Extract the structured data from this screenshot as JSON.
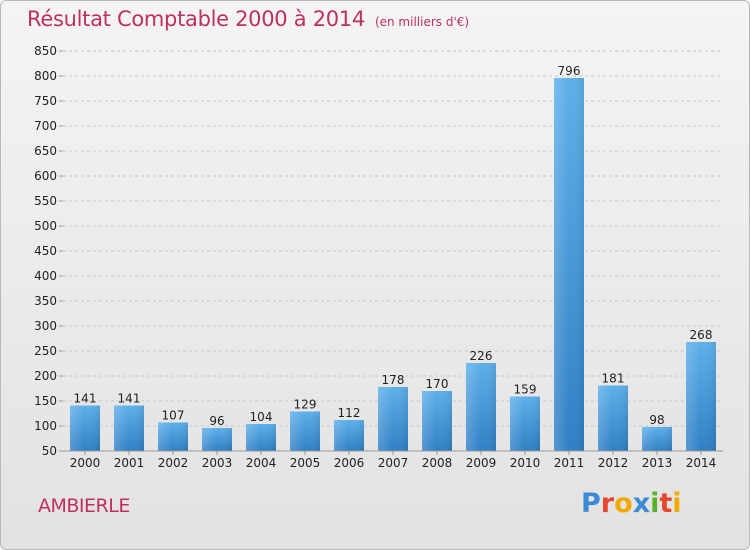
{
  "header": {
    "title": "Résultat Comptable 2000 à 2014",
    "subtitle": "(en milliers d'€)"
  },
  "footer": {
    "place": "AMBIERLE",
    "logo_text": "Proxiti",
    "logo_colors": [
      "#3a8ad4",
      "#e8462e",
      "#f2a900",
      "#3a8ad4",
      "#5ab22a",
      "#e8462e",
      "#f2a900"
    ]
  },
  "colors": {
    "title": "#c0305c",
    "bar_light": "#5db0ea",
    "bar_dark": "#2f7fc4",
    "grid": "#c8c8c8",
    "axis_text": "#222222"
  },
  "chart_data": {
    "type": "bar",
    "categories": [
      "2000",
      "2001",
      "2002",
      "2003",
      "2004",
      "2005",
      "2006",
      "2007",
      "2008",
      "2009",
      "2010",
      "2011",
      "2012",
      "2013",
      "2014"
    ],
    "values": [
      141,
      141,
      107,
      96,
      104,
      129,
      112,
      178,
      170,
      226,
      159,
      796,
      181,
      98,
      268
    ],
    "data_labels": [
      "141",
      "141",
      "107",
      "96",
      "104",
      "129",
      "112",
      "178",
      "170",
      "226",
      "159",
      "796",
      "181",
      "98",
      "268"
    ],
    "ylim": [
      50,
      850
    ],
    "yticks": [
      50,
      100,
      150,
      200,
      250,
      300,
      350,
      400,
      450,
      500,
      550,
      600,
      650,
      700,
      750,
      800,
      850
    ],
    "grid": true,
    "title": "Résultat Comptable 2000 à 2014",
    "xlabel": "",
    "ylabel": ""
  }
}
